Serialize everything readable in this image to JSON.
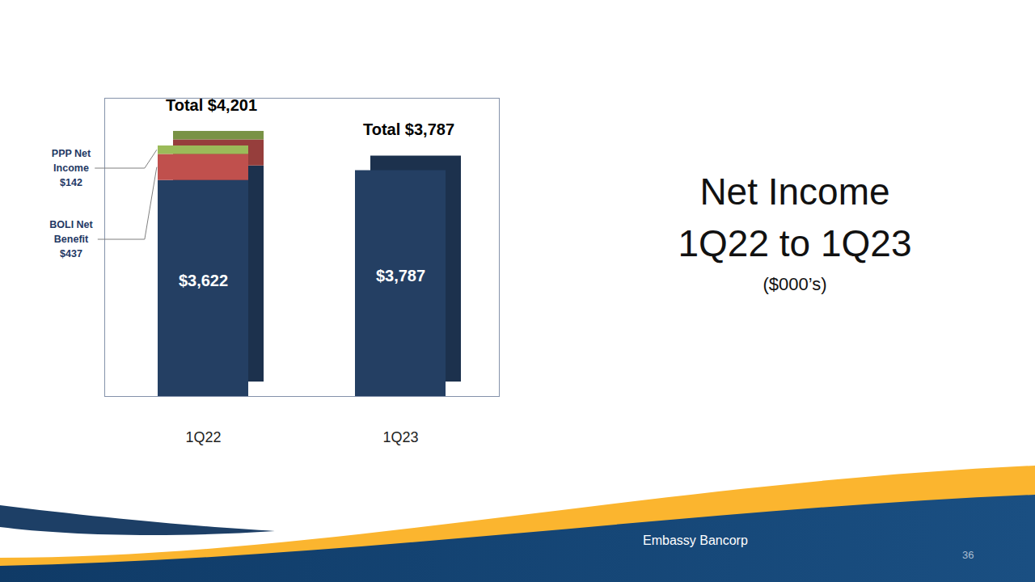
{
  "chart_data": {
    "type": "bar",
    "title": "Net Income",
    "subtitle": "1Q22 to 1Q23",
    "annotations": [
      "($000’s)"
    ],
    "footer": "Embassy Bancorp",
    "page": "36",
    "categories": [
      "1Q22",
      "1Q23"
    ],
    "series": [
      {
        "color": "#243f63",
        "values": [
          3622,
          3787
        ],
        "value_labels": [
          "$3,622",
          "$3,787"
        ]
      },
      {
        "name": "BOLI Net Benefit",
        "color": "#c0504d",
        "values": [
          437,
          null
        ],
        "value_labels": [
          "$437",
          null
        ]
      },
      {
        "name": "PPP Net Income",
        "color": "#9bbb59",
        "values": [
          142,
          null
        ],
        "value_labels": [
          "$142",
          null
        ]
      }
    ],
    "totals": [
      4201,
      3787
    ],
    "total_labels": [
      "Total $4,201",
      "Total $3,787"
    ],
    "stacked": true,
    "data_labels": true,
    "tick_labels": "x",
    "ylim": [
      0,
      5000
    ],
    "yticks": [],
    "grid": false
  }
}
